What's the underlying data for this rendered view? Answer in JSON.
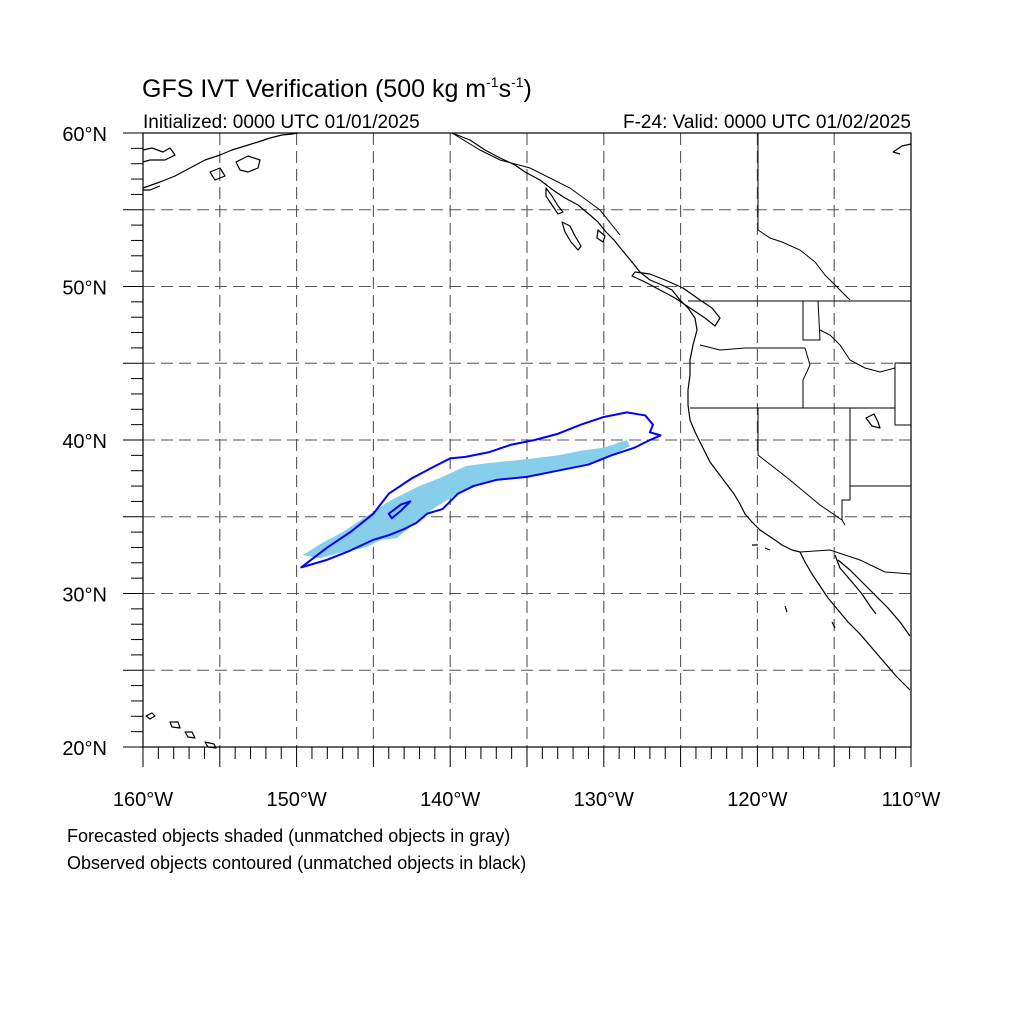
{
  "title": {
    "main": "GFS IVT Verification (500 kg m",
    "exp1": "-1",
    "mid": "s",
    "exp2": "-1",
    "close": ")"
  },
  "subtitle_left": "Initialized: 0000 UTC 01/01/2025",
  "subtitle_right": "F-24: Valid: 0000 UTC 01/02/2025",
  "notes": [
    "Forecasted objects shaded (unmatched objects in gray)",
    "Observed objects contoured (unmatched objects in black)"
  ],
  "colors": {
    "forecast_fill": "#87ceeb",
    "observed_contour": "#0000ff",
    "coast": "#000000",
    "grid": "#555555"
  },
  "chart_data": {
    "type": "map",
    "projection": "lat-lon (cylindrical equidistant)",
    "lon_range": [
      -160,
      -110
    ],
    "lat_range": [
      20,
      60
    ],
    "grid": true,
    "x_ticks": [
      {
        "value": -160,
        "label": "160°W"
      },
      {
        "value": -150,
        "label": "150°W"
      },
      {
        "value": -140,
        "label": "140°W"
      },
      {
        "value": -130,
        "label": "130°W"
      },
      {
        "value": -120,
        "label": "120°W"
      },
      {
        "value": -110,
        "label": "110°W"
      }
    ],
    "y_ticks": [
      {
        "value": 60,
        "label": "60°N"
      },
      {
        "value": 50,
        "label": "50°N"
      },
      {
        "value": 40,
        "label": "40°N"
      },
      {
        "value": 30,
        "label": "30°N"
      },
      {
        "value": 20,
        "label": "20°N"
      }
    ],
    "forecast_object": {
      "polygon": [
        [
          -149.6,
          32.5
        ],
        [
          -148.5,
          33.2
        ],
        [
          -147.0,
          34.0
        ],
        [
          -145.5,
          35.0
        ],
        [
          -144.0,
          36.0
        ],
        [
          -142.0,
          37.0
        ],
        [
          -140.5,
          37.6
        ],
        [
          -139.0,
          38.3
        ],
        [
          -137.5,
          38.5
        ],
        [
          -135.5,
          38.7
        ],
        [
          -133.0,
          39.0
        ],
        [
          -131.5,
          39.3
        ],
        [
          -130.0,
          39.5
        ],
        [
          -128.5,
          40.0
        ],
        [
          -128.3,
          39.6
        ],
        [
          -129.5,
          39.0
        ],
        [
          -131.0,
          38.4
        ],
        [
          -133.0,
          38.0
        ],
        [
          -135.0,
          37.6
        ],
        [
          -137.5,
          37.3
        ],
        [
          -139.5,
          36.5
        ],
        [
          -141.0,
          35.6
        ],
        [
          -142.0,
          34.8
        ],
        [
          -143.5,
          33.6
        ],
        [
          -144.5,
          33.5
        ],
        [
          -145.5,
          33.0
        ],
        [
          -147.0,
          32.7
        ],
        [
          -148.5,
          32.3
        ]
      ]
    },
    "observed_objects": [
      {
        "polygon": [
          [
            -149.7,
            31.7
          ],
          [
            -148.0,
            33.0
          ],
          [
            -146.5,
            34.0
          ],
          [
            -145.0,
            35.2
          ],
          [
            -144.0,
            36.5
          ],
          [
            -142.5,
            37.5
          ],
          [
            -141.0,
            38.3
          ],
          [
            -140.0,
            38.8
          ],
          [
            -139.0,
            38.9
          ],
          [
            -137.5,
            39.2
          ],
          [
            -136.0,
            39.7
          ],
          [
            -134.5,
            40.0
          ],
          [
            -133.0,
            40.4
          ],
          [
            -131.5,
            41.0
          ],
          [
            -130.0,
            41.5
          ],
          [
            -128.5,
            41.8
          ],
          [
            -127.3,
            41.6
          ],
          [
            -126.8,
            41.0
          ],
          [
            -127.0,
            40.5
          ],
          [
            -126.3,
            40.3
          ],
          [
            -127.0,
            40.0
          ],
          [
            -128.0,
            39.5
          ],
          [
            -129.5,
            39.0
          ],
          [
            -131.0,
            38.4
          ],
          [
            -133.0,
            38.0
          ],
          [
            -135.0,
            37.6
          ],
          [
            -137.0,
            37.4
          ],
          [
            -138.5,
            37.0
          ],
          [
            -139.5,
            36.5
          ],
          [
            -140.5,
            35.5
          ],
          [
            -141.5,
            35.2
          ],
          [
            -142.2,
            34.6
          ],
          [
            -143.0,
            34.2
          ],
          [
            -144.0,
            33.8
          ],
          [
            -145.0,
            33.5
          ],
          [
            -146.5,
            32.8
          ],
          [
            -148.0,
            32.2
          ]
        ]
      },
      {
        "polygon": [
          [
            -144.0,
            35.2
          ],
          [
            -143.2,
            35.8
          ],
          [
            -142.6,
            36.0
          ],
          [
            -143.2,
            35.4
          ],
          [
            -143.8,
            34.9
          ]
        ]
      }
    ]
  }
}
